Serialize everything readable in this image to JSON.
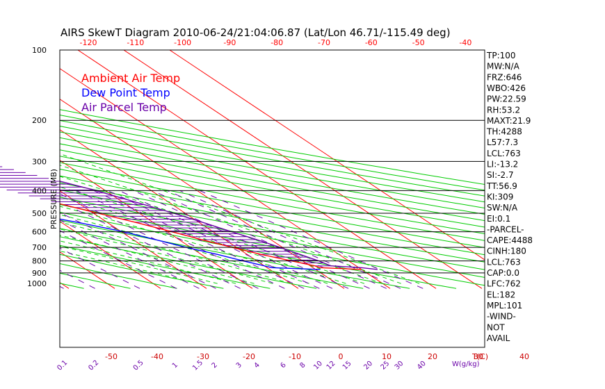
{
  "chart_data": {
    "type": "skew-t",
    "title": "AIRS SkewT Diagram 2010-06-24/21:04:06.87 (Lat/Lon 46.71/-115.49 deg)",
    "ylabel": "PRESSURE (MB)",
    "xlabel_right": "T(C)",
    "mixing_ratio_unit": "W(g/kg)",
    "pressure_levels": [
      100,
      200,
      300,
      400,
      500,
      600,
      700,
      800,
      900,
      1000
    ],
    "bottom_temp_ticks": [
      -50,
      -40,
      -30,
      -20,
      -10,
      0,
      10,
      20,
      30,
      40
    ],
    "top_temp_ticks": [
      -120,
      -110,
      -100,
      -90,
      -80,
      -70,
      -60,
      -50,
      -40
    ],
    "mixing_ratio_labels": [
      "0.1",
      "0.2",
      "0.5",
      "1",
      "1.5",
      "2",
      "3",
      "4",
      "6",
      "8",
      "10",
      "12",
      "15",
      "20",
      "25",
      "30",
      "40"
    ],
    "legend": [
      {
        "label": "Ambient Air Temp",
        "color": "#ff0000"
      },
      {
        "label": "Dew Point Temp",
        "color": "#0000ff"
      },
      {
        "label": "Air Parcel Temp",
        "color": "#6a00a8"
      }
    ],
    "series": [
      {
        "name": "Ambient Air Temp",
        "color": "#ff0000",
        "pressure": [
          870,
          855,
          840,
          800,
          750,
          700,
          650,
          600,
          550,
          500,
          450,
          400,
          350,
          300,
          270,
          250,
          230,
          210,
          200,
          190,
          150,
          100
        ],
        "temp_c": [
          30,
          21.5,
          21,
          17.5,
          13,
          9,
          5,
          1,
          -3.5,
          -9,
          -15,
          -21,
          -28,
          -37,
          -43,
          -48,
          -51,
          -53.5,
          -55,
          -54,
          -42,
          -22
        ]
      },
      {
        "name": "Dew Point Temp",
        "color": "#0000ff",
        "pressure": [
          870,
          855,
          840,
          800,
          750,
          700,
          650,
          600,
          550,
          500,
          450,
          400,
          350,
          300,
          250,
          210,
          200,
          180,
          150,
          130,
          100
        ],
        "temp_c": [
          21,
          11,
          10,
          7,
          3.5,
          -1,
          -5,
          -9.5,
          -16,
          -24,
          -33,
          -48,
          -62,
          -72,
          -75,
          -79,
          -80,
          -83,
          -91,
          -95,
          -103
        ]
      },
      {
        "name": "Air Parcel Temp",
        "color": "#6a00a8",
        "pressure": [
          870,
          855,
          840,
          800,
          750,
          700,
          650,
          600,
          550,
          500,
          450,
          400,
          350,
          300,
          250,
          220,
          200,
          180,
          150,
          130,
          100
        ],
        "temp_c": [
          33.5,
          30.5,
          24.5,
          23.5,
          21.5,
          19.5,
          17,
          14,
          11,
          7.5,
          3,
          -2,
          -9,
          -17.5,
          -28,
          -37,
          -43,
          -51,
          -63,
          -72,
          -88
        ]
      }
    ],
    "indices": [
      "TP:100",
      "MW:N/A",
      "FRZ:646",
      "WBO:426",
      "PW:22.59",
      "RH:53.2",
      "MAXT:21.9",
      "TH:4288",
      "L57:7.3",
      "LCL:763",
      "LI:-13.2",
      "SI:-2.7",
      "TT:56.9",
      "KI:309",
      "SW:N/A",
      "EI:0.1",
      "-PARCEL-",
      "CAPE:4488",
      "CINH:180",
      "LCL:763",
      "CAP:0.0",
      "LFC:762",
      "EL:182",
      "MPL:101",
      "-WIND-",
      "NOT",
      "AVAIL"
    ],
    "colors": {
      "isotherm": "#ff0000",
      "dry_adiabat": "#00cc00",
      "moist_adiabat": "#00cc00",
      "mixing_ratio": "#6a00a8",
      "cape_hatch": "#6a00a8",
      "frame": "#000000"
    }
  }
}
